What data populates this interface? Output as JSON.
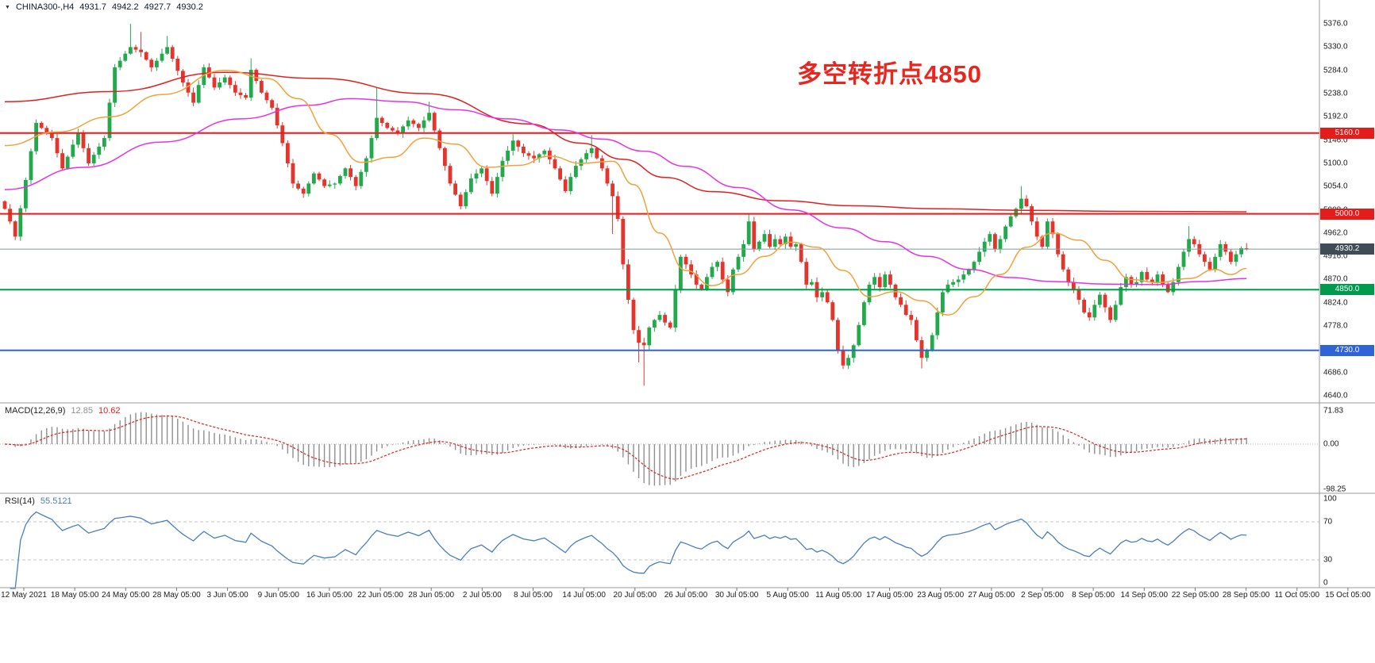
{
  "header": {
    "symbol": "CHINA300-,H4",
    "open": "4931.7",
    "high": "4942.2",
    "low": "4927.7",
    "close": "4930.2"
  },
  "annotation": {
    "text": "多空转折点4850",
    "color": "#e8251f"
  },
  "chart_data": {
    "type": "candlestick",
    "title": "CHINA300-,H4",
    "up_color": "#22a94c",
    "down_color": "#e5342c",
    "ylim": [
      4640,
      5423
    ],
    "y_ticks": [
      "5376.0",
      "5330.0",
      "5284.0",
      "5238.0",
      "5192.0",
      "5146.0",
      "5100.0",
      "5054.0",
      "5008.0",
      "4962.0",
      "4916.0",
      "4870.0",
      "4824.0",
      "4778.0",
      "4732.0",
      "4686.0",
      "4640.0"
    ],
    "x_labels": [
      "12 May 2021",
      "18 May 05:00",
      "24 May 05:00",
      "28 May 05:00",
      "3 Jun 05:00",
      "9 Jun 05:00",
      "16 Jun 05:00",
      "22 Jun 05:00",
      "28 Jun 05:00",
      "2 Jul 05:00",
      "8 Jul 05:00",
      "14 Jul 05:00",
      "20 Jul 05:00",
      "26 Jul 05:00",
      "30 Jul 05:00",
      "5 Aug 05:00",
      "11 Aug 05:00",
      "17 Aug 05:00",
      "23 Aug 05:00",
      "27 Aug 05:00",
      "2 Sep 05:00",
      "8 Sep 05:00",
      "14 Sep 05:00",
      "22 Sep 05:00",
      "28 Sep 05:00",
      "11 Oct 05:00",
      "15 Oct 05:00"
    ],
    "closes": [
      5010,
      4985,
      4955,
      5011,
      5067,
      5124,
      5180,
      5170,
      5160,
      5150,
      5120,
      5090,
      5113,
      5137,
      5160,
      5130,
      5100,
      5117,
      5133,
      5150,
      5220,
      5290,
      5303,
      5317,
      5330,
      5325,
      5320,
      5305,
      5290,
      5303,
      5317,
      5330,
      5307,
      5283,
      5260,
      5240,
      5220,
      5255,
      5290,
      5270,
      5250,
      5260,
      5270,
      5255,
      5240,
      5235,
      5230,
      5285,
      5263,
      5240,
      5225,
      5210,
      5175,
      5140,
      5100,
      5060,
      5050,
      5040,
      5060,
      5080,
      5068,
      5055,
      5058,
      5060,
      5075,
      5090,
      5073,
      5055,
      5083,
      5110,
      5150,
      5190,
      5180,
      5170,
      5165,
      5160,
      5173,
      5185,
      5178,
      5170,
      5185,
      5200,
      5165,
      5130,
      5095,
      5060,
      5038,
      5015,
      5043,
      5070,
      5080,
      5090,
      5065,
      5040,
      5073,
      5105,
      5125,
      5145,
      5133,
      5120,
      5115,
      5110,
      5118,
      5125,
      5108,
      5090,
      5068,
      5045,
      5073,
      5095,
      5108,
      5120,
      5130,
      5110,
      5090,
      5060,
      5035,
      4990,
      4900,
      4830,
      4770,
      4745,
      4740,
      4775,
      4790,
      4800,
      4785,
      4775,
      4850,
      4915,
      4900,
      4880,
      4860,
      4850,
      4875,
      4895,
      4905,
      4870,
      4845,
      4890,
      4915,
      4940,
      4985,
      4930,
      4945,
      4960,
      4935,
      4950,
      4940,
      4955,
      4935,
      4940,
      4905,
      4860,
      4865,
      4835,
      4845,
      4825,
      4790,
      4730,
      4700,
      4715,
      4740,
      4780,
      4825,
      4860,
      4875,
      4855,
      4880,
      4860,
      4835,
      4820,
      4800,
      4790,
      4750,
      4715,
      4730,
      4760,
      4805,
      4845,
      4860,
      4865,
      4870,
      4880,
      4890,
      4905,
      4925,
      4945,
      4960,
      4930,
      4950,
      4975,
      4995,
      5010,
      5030,
      5015,
      4985,
      4955,
      4935,
      4985,
      4960,
      4920,
      4890,
      4865,
      4850,
      4830,
      4805,
      4795,
      4820,
      4840,
      4815,
      4790,
      4820,
      4855,
      4875,
      4860,
      4865,
      4885,
      4870,
      4865,
      4880,
      4860,
      4845,
      4865,
      4895,
      4925,
      4950,
      4940,
      4920,
      4905,
      4890,
      4915,
      4940,
      4925,
      4905,
      4920,
      4932,
      4930.2
    ],
    "wick_overrides": [
      {
        "i": 2,
        "low": 4948
      },
      {
        "i": 24,
        "high": 5376
      },
      {
        "i": 26,
        "high": 5360
      },
      {
        "i": 31,
        "high": 5352
      },
      {
        "i": 47,
        "high": 5308
      },
      {
        "i": 71,
        "high": 5250
      },
      {
        "i": 81,
        "high": 5222
      },
      {
        "i": 97,
        "high": 5158
      },
      {
        "i": 112,
        "high": 5156
      },
      {
        "i": 116,
        "low": 4960
      },
      {
        "i": 121,
        "low": 4706
      },
      {
        "i": 122,
        "low": 4660
      },
      {
        "i": 142,
        "high": 5000
      },
      {
        "i": 160,
        "low": 4693
      },
      {
        "i": 175,
        "low": 4694
      },
      {
        "i": 194,
        "high": 5055
      },
      {
        "i": 226,
        "high": 4976
      },
      {
        "i": 237,
        "high": 4942.2,
        "low": 4927.7
      }
    ],
    "ma_lines": [
      {
        "name": "ma-slow-red",
        "color": "#e02020",
        "width": 1.5,
        "points": [
          [
            0,
            5222
          ],
          [
            20,
            5242
          ],
          [
            42,
            5280
          ],
          [
            60,
            5268
          ],
          [
            80,
            5238
          ],
          [
            100,
            5178
          ],
          [
            110,
            5140
          ],
          [
            118,
            5108
          ],
          [
            126,
            5072
          ],
          [
            135,
            5044
          ],
          [
            148,
            5026
          ],
          [
            162,
            5016
          ],
          [
            178,
            5010
          ],
          [
            195,
            5007
          ],
          [
            215,
            5005
          ],
          [
            237,
            5004
          ]
        ]
      },
      {
        "name": "ma-mid-magenta",
        "color": "#e531e5",
        "width": 1.5,
        "points": [
          [
            0,
            5048
          ],
          [
            15,
            5092
          ],
          [
            30,
            5142
          ],
          [
            45,
            5188
          ],
          [
            58,
            5215
          ],
          [
            66,
            5228
          ],
          [
            76,
            5222
          ],
          [
            86,
            5206
          ],
          [
            96,
            5188
          ],
          [
            106,
            5166
          ],
          [
            114,
            5148
          ],
          [
            122,
            5124
          ],
          [
            130,
            5094
          ],
          [
            140,
            5052
          ],
          [
            150,
            5008
          ],
          [
            160,
            4972
          ],
          [
            168,
            4945
          ],
          [
            176,
            4916
          ],
          [
            184,
            4890
          ],
          [
            192,
            4874
          ],
          [
            200,
            4866
          ],
          [
            210,
            4861
          ],
          [
            220,
            4860
          ],
          [
            228,
            4866
          ],
          [
            237,
            4872
          ]
        ]
      },
      {
        "name": "ma-fast-orange",
        "color": "#efa23b",
        "width": 1.5,
        "points": [
          [
            0,
            5135
          ],
          [
            10,
            5162
          ],
          [
            20,
            5192
          ],
          [
            30,
            5236
          ],
          [
            42,
            5284
          ],
          [
            50,
            5268
          ],
          [
            56,
            5228
          ],
          [
            62,
            5158
          ],
          [
            68,
            5102
          ],
          [
            74,
            5112
          ],
          [
            80,
            5150
          ],
          [
            86,
            5138
          ],
          [
            92,
            5092
          ],
          [
            98,
            5096
          ],
          [
            104,
            5114
          ],
          [
            110,
            5100
          ],
          [
            116,
            5104
          ],
          [
            120,
            5058
          ],
          [
            125,
            4962
          ],
          [
            130,
            4888
          ],
          [
            135,
            4858
          ],
          [
            140,
            4880
          ],
          [
            145,
            4916
          ],
          [
            150,
            4944
          ],
          [
            155,
            4934
          ],
          [
            160,
            4888
          ],
          [
            165,
            4836
          ],
          [
            170,
            4846
          ],
          [
            175,
            4828
          ],
          [
            180,
            4800
          ],
          [
            185,
            4836
          ],
          [
            190,
            4880
          ],
          [
            195,
            4934
          ],
          [
            200,
            4962
          ],
          [
            205,
            4948
          ],
          [
            210,
            4908
          ],
          [
            215,
            4870
          ],
          [
            220,
            4864
          ],
          [
            226,
            4872
          ],
          [
            231,
            4890
          ],
          [
            234,
            4880
          ],
          [
            237,
            4892
          ]
        ]
      }
    ],
    "levels": [
      {
        "value": 5160.0,
        "label": "5160.0",
        "color": "#e51c1c",
        "line_width": 2,
        "badge_color": "#e51c1c",
        "style": "hline"
      },
      {
        "value": 5000.0,
        "label": "5000.0",
        "color": "#e51c1c",
        "line_width": 2,
        "badge_color": "#e51c1c",
        "style": "hline"
      },
      {
        "value": 4930.2,
        "label": "4930.2",
        "color": "#7d9c9c",
        "line_width": 1,
        "badge_color": "#3f4c55",
        "style": "current"
      },
      {
        "value": 4850.0,
        "label": "4850.0",
        "color": "#009a4d",
        "line_width": 2,
        "badge_color": "#009a4d",
        "style": "hline"
      },
      {
        "value": 4730.0,
        "label": "4730.0",
        "color": "#2f64d6",
        "line_width": 2,
        "badge_color": "#2f64d6",
        "style": "hline"
      }
    ],
    "indicators": {
      "macd": {
        "label": "MACD(12,26,9)",
        "main_value": "12.85",
        "signal_value": "10.62",
        "fast": 12,
        "slow": 26,
        "signal": 9,
        "axis_ticks": [
          "71.83",
          "0.00",
          "-98.25"
        ],
        "histogram_color": "#8f8f8f",
        "signal_color": "#dd2222"
      },
      "rsi": {
        "label": "RSI(14)",
        "value": "55.5121",
        "period": 14,
        "axis_ticks": [
          "100",
          "70",
          "30",
          "0"
        ],
        "level_lines": [
          70,
          30
        ],
        "line_color": "#4a7ebb"
      }
    }
  }
}
